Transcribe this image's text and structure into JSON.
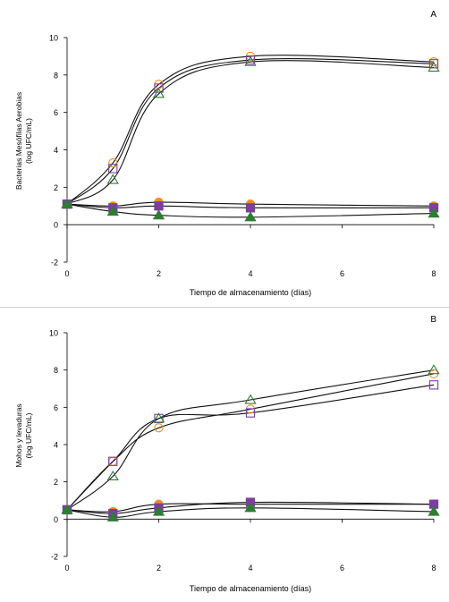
{
  "chart_data": [
    {
      "type": "line",
      "panel_label": "A",
      "xlabel": "Tiempo de almacenamiento (días)",
      "ylabel": [
        "Bacterias Mesófilas Aerobias",
        "(log UFC/mL)"
      ],
      "xlim": [
        0,
        8
      ],
      "ylim": [
        -2,
        10
      ],
      "x_ticks": [
        "0",
        "2",
        "4",
        "6",
        "8"
      ],
      "y_ticks": [
        "-2",
        "0",
        "2",
        "4",
        "6",
        "8",
        "10"
      ],
      "grid": false,
      "legend": "none",
      "x": [
        0,
        1,
        2,
        4,
        8
      ],
      "series": [
        {
          "marker": "circle-open",
          "color": "#f28c28",
          "fill": "none",
          "values": [
            1.1,
            3.3,
            7.5,
            9.0,
            8.7
          ]
        },
        {
          "marker": "square-open",
          "color": "#7b3f9e",
          "fill": "none",
          "values": [
            1.1,
            3.0,
            7.3,
            8.8,
            8.6
          ]
        },
        {
          "marker": "triangle-open",
          "color": "#2e7d32",
          "fill": "none",
          "values": [
            1.1,
            2.4,
            7.0,
            8.7,
            8.4
          ]
        },
        {
          "marker": "circle-filled",
          "color": "#f28c28",
          "fill": "#f28c28",
          "values": [
            1.1,
            1.0,
            1.2,
            1.1,
            1.0
          ]
        },
        {
          "marker": "square-filled",
          "color": "#7b3f9e",
          "fill": "#7b3f9e",
          "values": [
            1.1,
            0.9,
            1.0,
            0.9,
            0.9
          ]
        },
        {
          "marker": "triangle-filled",
          "color": "#2e7d32",
          "fill": "#2e7d32",
          "values": [
            1.1,
            0.7,
            0.5,
            0.4,
            0.6
          ]
        }
      ]
    },
    {
      "type": "line",
      "panel_label": "B",
      "xlabel": "Tiempo de almacenamiento (días)",
      "ylabel": [
        "Mohos y levaduras",
        "(log UFC/mL)"
      ],
      "xlim": [
        0,
        8
      ],
      "ylim": [
        -2,
        10
      ],
      "x_ticks": [
        "0",
        "2",
        "4",
        "6",
        "8"
      ],
      "y_ticks": [
        "-2",
        "0",
        "2",
        "4",
        "6",
        "8",
        "10"
      ],
      "grid": false,
      "legend": "none",
      "x": [
        0,
        1,
        2,
        4,
        8
      ],
      "series": [
        {
          "marker": "circle-open",
          "color": "#f28c28",
          "fill": "none",
          "values": [
            0.5,
            3.1,
            4.9,
            5.9,
            7.8
          ]
        },
        {
          "marker": "square-open",
          "color": "#7b3f9e",
          "fill": "none",
          "values": [
            0.5,
            3.1,
            5.4,
            5.7,
            7.2
          ]
        },
        {
          "marker": "triangle-open",
          "color": "#2e7d32",
          "fill": "none",
          "values": [
            0.5,
            2.3,
            5.4,
            6.4,
            8.0
          ]
        },
        {
          "marker": "circle-filled",
          "color": "#f28c28",
          "fill": "#f28c28",
          "values": [
            0.5,
            0.4,
            0.8,
            0.8,
            0.8
          ]
        },
        {
          "marker": "square-filled",
          "color": "#7b3f9e",
          "fill": "#7b3f9e",
          "values": [
            0.5,
            0.3,
            0.6,
            0.9,
            0.8
          ]
        },
        {
          "marker": "triangle-filled",
          "color": "#2e7d32",
          "fill": "#2e7d32",
          "values": [
            0.5,
            0.1,
            0.4,
            0.6,
            0.4
          ]
        }
      ]
    }
  ]
}
